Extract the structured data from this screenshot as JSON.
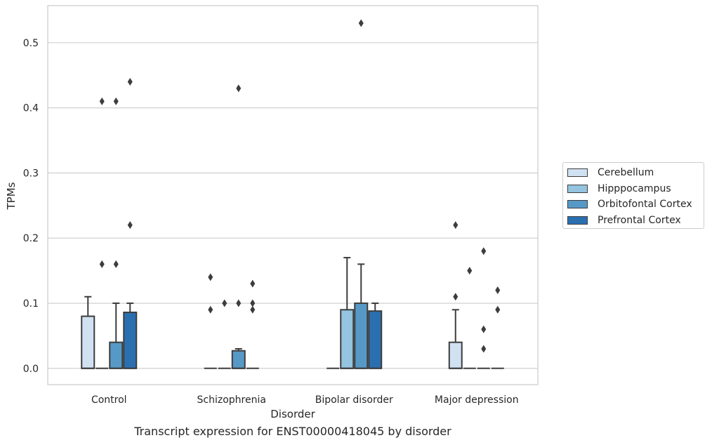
{
  "chart_data": {
    "type": "box",
    "title": "",
    "caption": "Transcript expression for ENST00000418045 by disorder",
    "xlabel": "Disorder",
    "ylabel": "TPMs",
    "ylim": [
      -0.025,
      0.557
    ],
    "yticks": [
      0.0,
      0.1,
      0.2,
      0.3,
      0.4,
      0.5
    ],
    "ytick_labels": [
      "0.0",
      "0.1",
      "0.2",
      "0.3",
      "0.4",
      "0.5"
    ],
    "grid": true,
    "legend_placement": "outside right",
    "categories": [
      "Control",
      "Schizophrenia",
      "Bipolar disorder",
      "Major depression"
    ],
    "series": [
      {
        "name": "Cerebellum",
        "color": "#d0e1f2",
        "boxes": [
          {
            "q1": 0.0,
            "median": 0.0,
            "q3": 0.08,
            "whisker_low": 0.0,
            "whisker_high": 0.11,
            "outliers": []
          },
          {
            "q1": 0.0,
            "median": 0.0,
            "q3": 0.0,
            "whisker_low": 0.0,
            "whisker_high": 0.0,
            "outliers": [
              0.09,
              0.14
            ]
          },
          {
            "q1": 0.0,
            "median": 0.0,
            "q3": 0.0,
            "whisker_low": 0.0,
            "whisker_high": 0.0,
            "outliers": []
          },
          {
            "q1": 0.0,
            "median": 0.0,
            "q3": 0.04,
            "whisker_low": 0.0,
            "whisker_high": 0.09,
            "outliers": [
              0.11,
              0.22
            ]
          }
        ]
      },
      {
        "name": "Hipppocampus",
        "color": "#94c4df",
        "boxes": [
          {
            "q1": 0.0,
            "median": 0.0,
            "q3": 0.0,
            "whisker_low": 0.0,
            "whisker_high": 0.0,
            "outliers": [
              0.16,
              0.41
            ]
          },
          {
            "q1": 0.0,
            "median": 0.0,
            "q3": 0.0,
            "whisker_low": 0.0,
            "whisker_high": 0.0,
            "outliers": [
              0.1
            ]
          },
          {
            "q1": 0.0,
            "median": 0.0,
            "q3": 0.09,
            "whisker_low": 0.0,
            "whisker_high": 0.17,
            "outliers": []
          },
          {
            "q1": 0.0,
            "median": 0.0,
            "q3": 0.0,
            "whisker_low": 0.0,
            "whisker_high": 0.0,
            "outliers": [
              0.15
            ]
          }
        ]
      },
      {
        "name": "Orbitofontal Cortex",
        "color": "#5799c6",
        "boxes": [
          {
            "q1": 0.0,
            "median": 0.0,
            "q3": 0.04,
            "whisker_low": 0.0,
            "whisker_high": 0.1,
            "outliers": [
              0.16,
              0.41
            ]
          },
          {
            "q1": 0.0,
            "median": 0.0,
            "q3": 0.027,
            "whisker_low": 0.0,
            "whisker_high": 0.03,
            "outliers": [
              0.1,
              0.43
            ]
          },
          {
            "q1": 0.0,
            "median": 0.0,
            "q3": 0.1,
            "whisker_low": 0.0,
            "whisker_high": 0.16,
            "outliers": [
              0.53
            ]
          },
          {
            "q1": 0.0,
            "median": 0.0,
            "q3": 0.0,
            "whisker_low": 0.0,
            "whisker_high": 0.0,
            "outliers": [
              0.03,
              0.06,
              0.18
            ]
          }
        ]
      },
      {
        "name": "Prefrontal Cortex",
        "color": "#2a6fb0",
        "boxes": [
          {
            "q1": 0.0,
            "median": 0.0,
            "q3": 0.086,
            "whisker_low": 0.0,
            "whisker_high": 0.1,
            "outliers": [
              0.22,
              0.44
            ]
          },
          {
            "q1": 0.0,
            "median": 0.0,
            "q3": 0.0,
            "whisker_low": 0.0,
            "whisker_high": 0.0,
            "outliers": [
              0.09,
              0.1,
              0.13
            ]
          },
          {
            "q1": 0.0,
            "median": 0.0,
            "q3": 0.088,
            "whisker_low": 0.0,
            "whisker_high": 0.1,
            "outliers": []
          },
          {
            "q1": 0.0,
            "median": 0.0,
            "q3": 0.0,
            "whisker_low": 0.0,
            "whisker_high": 0.0,
            "outliers": [
              0.09,
              0.12
            ]
          }
        ]
      }
    ]
  }
}
